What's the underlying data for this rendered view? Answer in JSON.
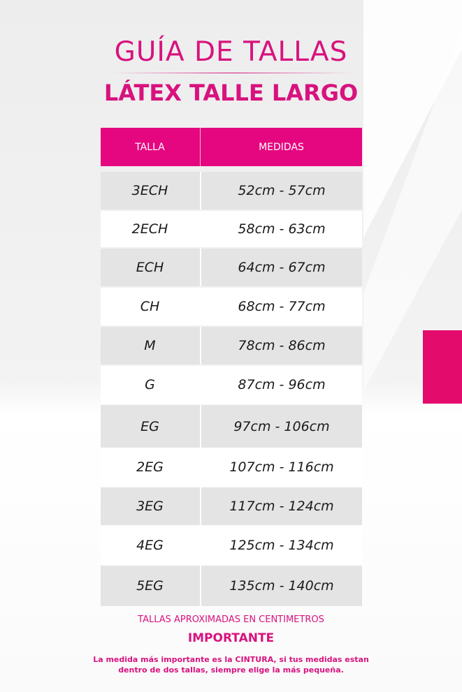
{
  "title": "GUÍA DE TALLAS",
  "subtitle": "LÁTEX TALLE LARGO",
  "brand_color": "#e5077f",
  "table": {
    "headers": [
      "TALLA",
      "MEDIDAS"
    ],
    "rows": [
      {
        "size": "3ECH",
        "measure": "52cm - 57cm"
      },
      {
        "size": "2ECH",
        "measure": "58cm - 63cm"
      },
      {
        "size": "ECH",
        "measure": "64cm - 67cm"
      },
      {
        "size": "CH",
        "measure": "68cm - 77cm"
      },
      {
        "size": "M",
        "measure": "78cm - 86cm"
      },
      {
        "size": "G",
        "measure": "87cm - 96cm"
      },
      {
        "size": "EG",
        "measure": "97cm - 106cm"
      },
      {
        "size": "2EG",
        "measure": "107cm - 116cm"
      },
      {
        "size": "3EG",
        "measure": "117cm - 124cm"
      },
      {
        "size": "4EG",
        "measure": "125cm - 134cm"
      },
      {
        "size": "5EG",
        "measure": "135cm - 140cm"
      }
    ]
  },
  "footer": {
    "note": "TALLAS APROXIMADAS EN CENTIMETROS",
    "important": "IMPORTANTE",
    "line1": "La medida más importante es la CINTURA, si tus medidas estan",
    "line2": "dentro de dos tallas, siempre elige la más pequeña."
  }
}
